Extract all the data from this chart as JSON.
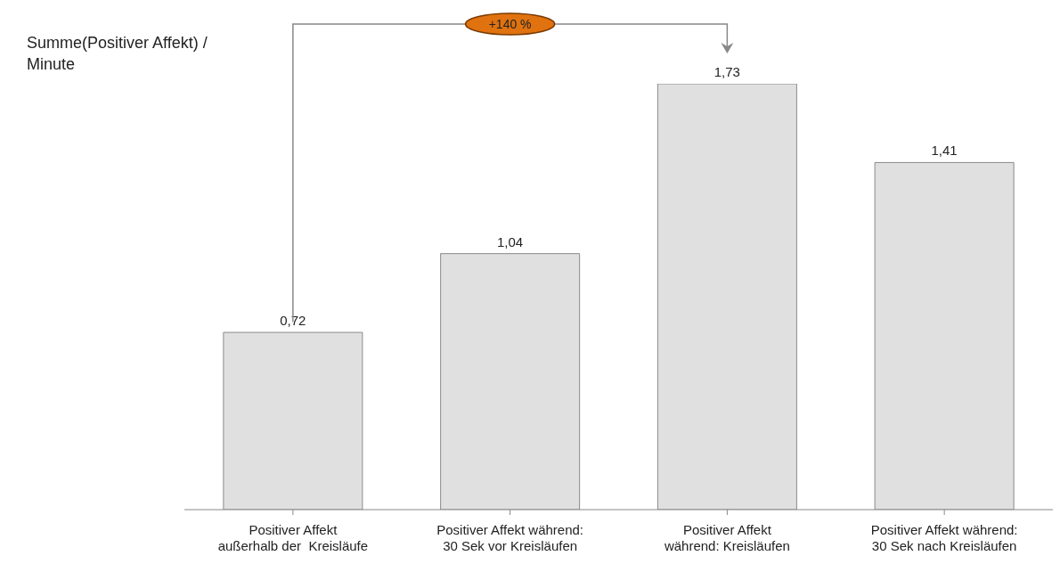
{
  "chart_data": {
    "type": "bar",
    "ylabel": "Summe(Positiver Affekt) /\nMinute",
    "categories": [
      "Positiver Affekt\naußerhalb der  Kreisläufe",
      "Positiver Affekt während:\n30 Sek vor Kreisläufen",
      "Positiver Affekt\nwährend: Kreisläufen",
      "Positiver Affekt während:\n30 Sek nach Kreisläufen"
    ],
    "values": [
      0.72,
      1.04,
      1.73,
      1.41
    ],
    "value_labels": [
      "0,72",
      "1,04",
      "1,73",
      "1,41"
    ],
    "color": "#e0e0e0",
    "annotations": [
      "+140 %"
    ]
  }
}
